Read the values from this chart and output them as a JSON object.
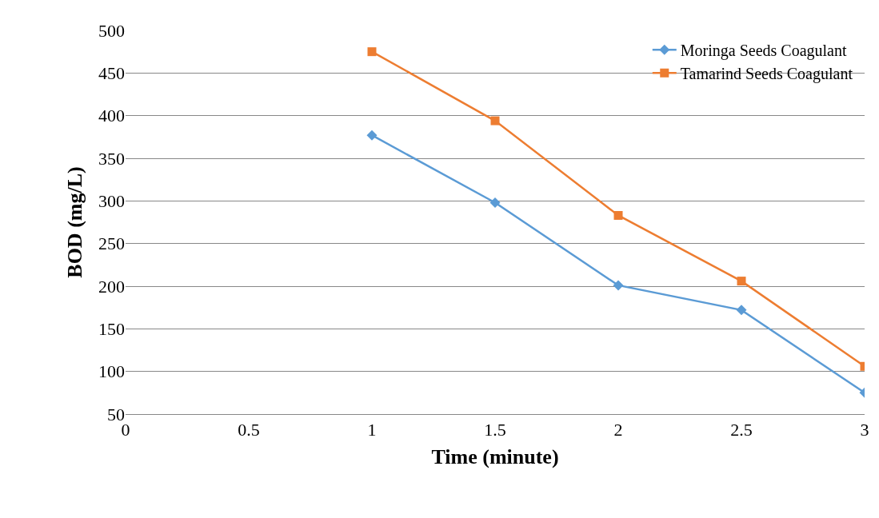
{
  "chart_data": {
    "type": "line",
    "xlabel": "Time (minute)",
    "ylabel": "BOD (mg/L)",
    "xlim": [
      0,
      3
    ],
    "xticks": [
      0,
      0.5,
      1,
      1.5,
      2,
      2.5,
      3
    ],
    "ylim": [
      50,
      500
    ],
    "yticks": [
      50,
      100,
      150,
      200,
      250,
      300,
      350,
      400,
      450,
      500
    ],
    "grid": "y",
    "legend": "top right",
    "series": [
      {
        "name": "Moringa Seeds Coagulant",
        "color": "#5b9bd5",
        "marker": "diamond",
        "x": [
          1,
          1.5,
          2,
          2.5,
          3
        ],
        "values": [
          377,
          298,
          201,
          172,
          75
        ]
      },
      {
        "name": "Tamarind Seeds Coagulant",
        "color": "#ed7d31",
        "marker": "square",
        "x": [
          1,
          1.5,
          2,
          2.5,
          3
        ],
        "values": [
          475,
          394,
          283,
          206,
          106
        ]
      }
    ]
  }
}
